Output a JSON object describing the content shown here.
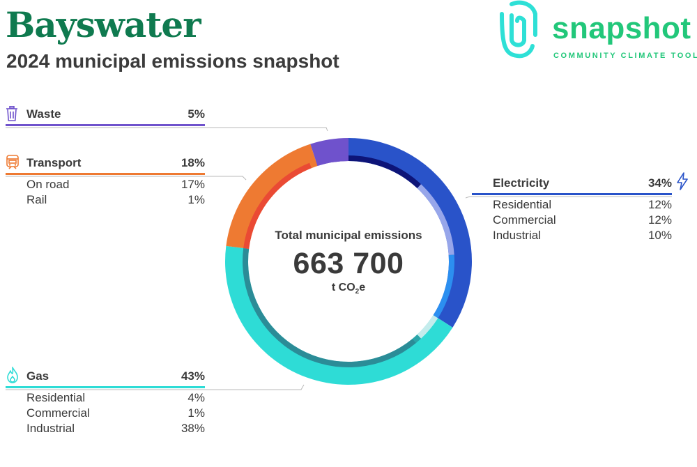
{
  "header": {
    "title": "Bayswater",
    "subtitle": "2024 municipal emissions snapshot"
  },
  "logo": {
    "name": "snapshot",
    "tagline": "COMMUNITY CLIMATE TOOL",
    "color": "#22c77a",
    "mark_color": "#2ee0d6"
  },
  "center": {
    "label": "Total municipal emissions",
    "value": "663 700",
    "unit_prefix": "t CO",
    "unit_sub": "2",
    "unit_suffix": "e"
  },
  "categories": [
    {
      "id": "waste",
      "name": "Waste",
      "total": "5%",
      "icon": "trash-bin-icon",
      "color": "#6f52cc",
      "subs": []
    },
    {
      "id": "transport",
      "name": "Transport",
      "total": "18%",
      "icon": "train-icon",
      "color": "#ee7a32",
      "subs": [
        {
          "label": "On road",
          "value": "17%"
        },
        {
          "label": "Rail",
          "value": "1%"
        }
      ]
    },
    {
      "id": "electricity",
      "name": "Electricity",
      "total": "34%",
      "icon": "lightning-bolt-icon",
      "color": "#2953c9",
      "subs": [
        {
          "label": "Residential",
          "value": "12%"
        },
        {
          "label": "Commercial",
          "value": "12%"
        },
        {
          "label": "Industrial",
          "value": "10%"
        }
      ]
    },
    {
      "id": "gas",
      "name": "Gas",
      "total": "43%",
      "icon": "flame-icon",
      "color": "#2edcd6",
      "subs": [
        {
          "label": "Residential",
          "value": "4%"
        },
        {
          "label": "Commercial",
          "value": "1%"
        },
        {
          "label": "Industrial",
          "value": "38%"
        }
      ]
    }
  ],
  "chart_data": {
    "type": "pie",
    "variant": "donut-with-inner-subcategory-ring",
    "total": 663700,
    "unit": "t CO2e",
    "outer_ring": [
      {
        "category": "Electricity",
        "percent": 34,
        "color": "#2953c9"
      },
      {
        "category": "Gas",
        "percent": 43,
        "color": "#2edcd6"
      },
      {
        "category": "Transport",
        "percent": 18,
        "color": "#ee7a32"
      },
      {
        "category": "Waste",
        "percent": 5,
        "color": "#6f52cc"
      }
    ],
    "inner_ring": [
      {
        "category": "Electricity",
        "sub": "Residential",
        "percent": 12,
        "color": "#0d1478"
      },
      {
        "category": "Electricity",
        "sub": "Commercial",
        "percent": 12,
        "color": "#97a6ea"
      },
      {
        "category": "Electricity",
        "sub": "Industrial",
        "percent": 10,
        "color": "#2c8ff0"
      },
      {
        "category": "Gas",
        "sub": "Residential",
        "percent": 4,
        "color": "#c4ecec"
      },
      {
        "category": "Gas",
        "sub": "Commercial",
        "percent": 1,
        "color": "#2aa4a8"
      },
      {
        "category": "Gas",
        "sub": "Industrial",
        "percent": 38,
        "color": "#2b8c97"
      },
      {
        "category": "Transport",
        "sub": "On road",
        "percent": 17,
        "color": "#ea4a34"
      },
      {
        "category": "Transport",
        "sub": "Rail",
        "percent": 1,
        "color": "#ee7a32"
      },
      {
        "category": "Waste",
        "sub": "",
        "percent": 5,
        "color": "#6f52cc"
      }
    ]
  }
}
